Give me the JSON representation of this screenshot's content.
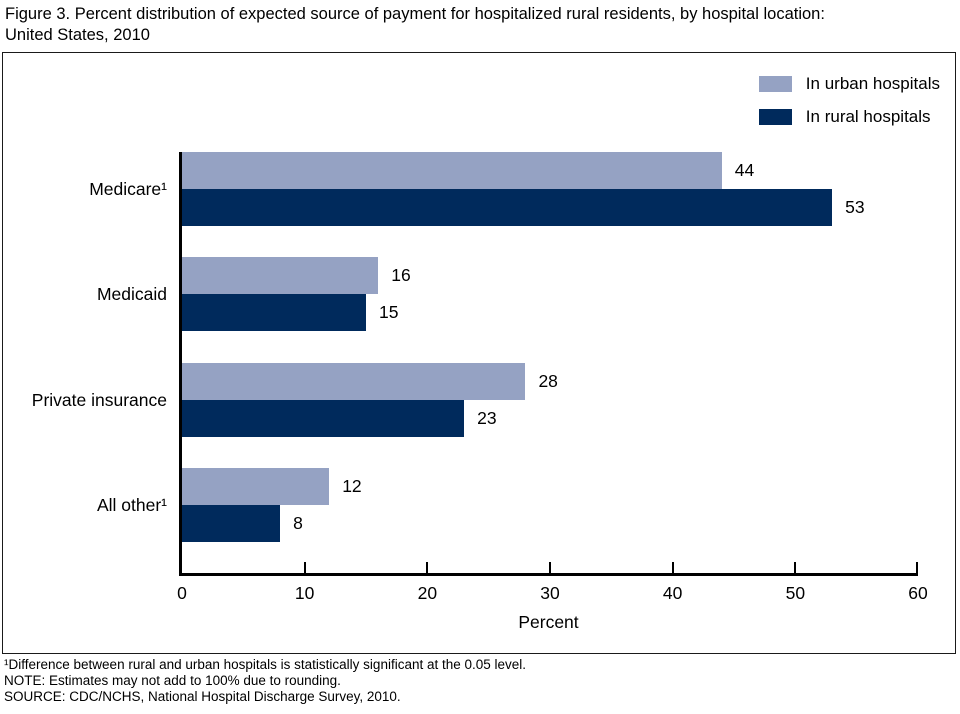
{
  "title": {
    "line1": "Figure 3. Percent distribution of expected source of payment for hospitalized rural residents, by hospital location:",
    "line2": "United States, 2010"
  },
  "chart_data": {
    "type": "bar",
    "orientation": "horizontal",
    "title": "Figure 3. Percent distribution of expected source of payment for hospitalized rural residents, by hospital location: United States, 2010",
    "categories": [
      "Medicare¹",
      "Medicaid",
      "Private insurance",
      "All other¹"
    ],
    "series": [
      {
        "name": "In urban hospitals",
        "color": "#95A2C3",
        "values": [
          44,
          16,
          28,
          12
        ]
      },
      {
        "name": "In rural hospitals",
        "color": "#002A5C",
        "values": [
          53,
          15,
          23,
          8
        ]
      }
    ],
    "xlabel": "Percent",
    "xlim": [
      0,
      60
    ],
    "xticks": [
      0,
      10,
      20,
      30,
      40,
      50,
      60
    ],
    "value_labels": true,
    "grid": false,
    "legend_position": "top-right"
  },
  "footnotes": [
    "¹Difference between rural and urban hospitals is statistically significant at the 0.05 level.",
    "NOTE: Estimates may not add to 100% due to rounding.",
    "SOURCE: CDC/NCHS, National Hospital Discharge Survey, 2010."
  ]
}
